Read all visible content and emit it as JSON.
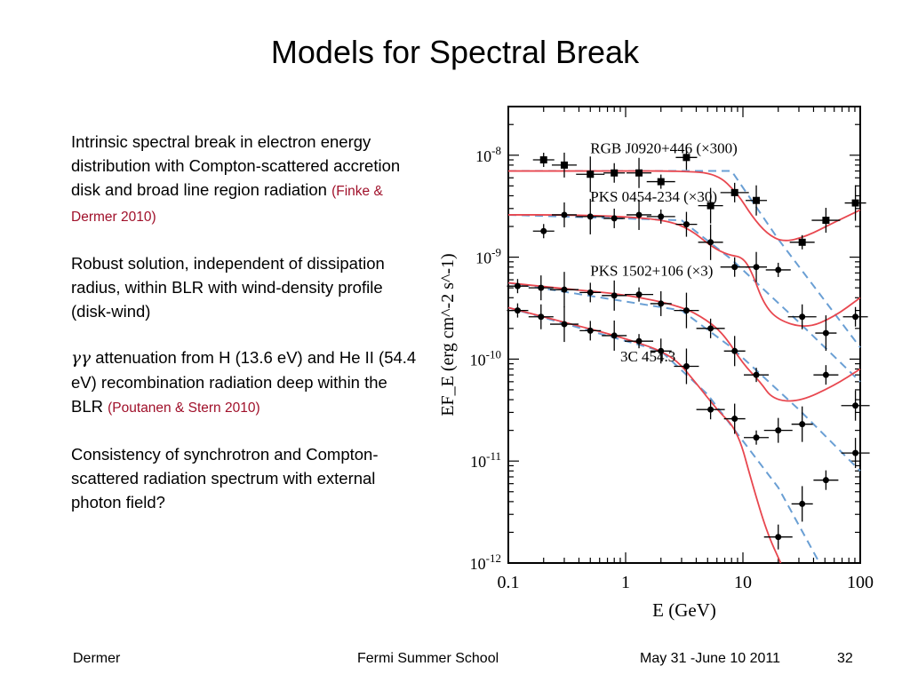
{
  "slide": {
    "title": "Models for Spectral Break",
    "bullets": [
      {
        "text": "Intrinsic spectral break in electron energy distribution with Compton-scattered accretion disk and broad line region radiation ",
        "cite": "(Finke & Dermer 2010)"
      },
      {
        "text": "Robust solution, independent of dissipation radius, within BLR with wind-density profile (disk-wind)",
        "cite": ""
      },
      {
        "prefix": "γγ",
        "text": " attenuation from H (13.6 eV) and He II (54.4 eV) recombination radiation deep within the BLR ",
        "cite": "(Poutanen & Stern 2010)"
      },
      {
        "text": "Consistency of synchrotron and Compton-scattered radiation spectrum with external photon field?",
        "cite": ""
      }
    ],
    "footer": {
      "author": "Dermer",
      "event": "Fermi Summer School",
      "date": "May 31 -June 10 2011",
      "page": "32"
    }
  },
  "colors": {
    "model_curve": "#e8474f",
    "powerlaw_dash": "#6a9fd4",
    "citation": "#a0102a"
  },
  "chart_data": {
    "type": "scatter",
    "x_scale": "log",
    "y_scale": "log",
    "xlabel": "E (GeV)",
    "ylabel": "EF_E (erg cm^-2 s^-1)",
    "xlim": [
      0.1,
      100
    ],
    "ylim": [
      1e-12,
      3e-08
    ],
    "x_ticks": [
      "0.1",
      "1",
      "10",
      "100"
    ],
    "y_ticks": [
      "10-12",
      "10-11",
      "10-10",
      "10-9",
      "10-8"
    ],
    "series": [
      {
        "name": "RGB J0920+446 (×300)",
        "marker": "square",
        "points": [
          {
            "x": 0.2,
            "y": 9e-09
          },
          {
            "x": 0.3,
            "y": 8e-09
          },
          {
            "x": 0.5,
            "y": 6.5e-09
          },
          {
            "x": 0.8,
            "y": 6.7e-09
          },
          {
            "x": 1.3,
            "y": 6.7e-09
          },
          {
            "x": 2.0,
            "y": 5.5e-09
          },
          {
            "x": 3.3,
            "y": 9.5e-09
          },
          {
            "x": 5.3,
            "y": 3.2e-09
          },
          {
            "x": 8.5,
            "y": 4.3e-09
          },
          {
            "x": 13,
            "y": 3.6e-09
          },
          {
            "x": 32,
            "y": 1.4e-09
          },
          {
            "x": 51,
            "y": 2.3e-09
          },
          {
            "x": 91,
            "y": 3.4e-09
          }
        ]
      },
      {
        "name": "PKS 0454-234 (×30)",
        "marker": "circle",
        "points": [
          {
            "x": 0.2,
            "y": 1.8e-09
          },
          {
            "x": 0.3,
            "y": 2.6e-09
          },
          {
            "x": 0.5,
            "y": 2.5e-09
          },
          {
            "x": 0.8,
            "y": 2.4e-09
          },
          {
            "x": 1.3,
            "y": 2.6e-09
          },
          {
            "x": 2.0,
            "y": 2.5e-09
          },
          {
            "x": 3.3,
            "y": 2.1e-09
          },
          {
            "x": 5.3,
            "y": 1.4e-09
          },
          {
            "x": 8.5,
            "y": 8e-10
          },
          {
            "x": 13,
            "y": 8e-10
          },
          {
            "x": 20,
            "y": 7.5e-10
          },
          {
            "x": 32,
            "y": 2.6e-10
          },
          {
            "x": 51,
            "y": 1.8e-10
          },
          {
            "x": 91,
            "y": 2.6e-10
          }
        ]
      },
      {
        "name": "PKS 1502+106 (×3)",
        "marker": "circle",
        "points": [
          {
            "x": 0.12,
            "y": 5.2e-10
          },
          {
            "x": 0.19,
            "y": 5e-10
          },
          {
            "x": 0.3,
            "y": 4.8e-10
          },
          {
            "x": 0.5,
            "y": 4.5e-10
          },
          {
            "x": 0.8,
            "y": 4.2e-10
          },
          {
            "x": 1.3,
            "y": 4.3e-10
          },
          {
            "x": 2.0,
            "y": 3.5e-10
          },
          {
            "x": 3.3,
            "y": 3e-10
          },
          {
            "x": 5.3,
            "y": 2e-10
          },
          {
            "x": 8.5,
            "y": 1.2e-10
          },
          {
            "x": 13,
            "y": 7e-11
          },
          {
            "x": 20,
            "y": 2e-11
          },
          {
            "x": 32,
            "y": 2.3e-11
          },
          {
            "x": 51,
            "y": 7e-11
          },
          {
            "x": 91,
            "y": 3.5e-11
          }
        ]
      },
      {
        "name": "3C 454.3",
        "marker": "circle",
        "points": [
          {
            "x": 0.12,
            "y": 3e-10
          },
          {
            "x": 0.19,
            "y": 2.6e-10
          },
          {
            "x": 0.3,
            "y": 2.2e-10
          },
          {
            "x": 0.5,
            "y": 1.9e-10
          },
          {
            "x": 0.8,
            "y": 1.7e-10
          },
          {
            "x": 1.3,
            "y": 1.5e-10
          },
          {
            "x": 2.0,
            "y": 1.2e-10
          },
          {
            "x": 3.3,
            "y": 8.5e-11
          },
          {
            "x": 5.3,
            "y": 3.2e-11
          },
          {
            "x": 8.5,
            "y": 2.6e-11
          },
          {
            "x": 13,
            "y": 1.7e-11
          },
          {
            "x": 20,
            "y": 1.8e-12
          },
          {
            "x": 32,
            "y": 3.8e-12
          },
          {
            "x": 51,
            "y": 6.5e-12
          },
          {
            "x": 91,
            "y": 1.2e-11
          }
        ]
      }
    ],
    "models": [
      {
        "series": "RGB J0920+446 (×300)",
        "points": [
          [
            0.1,
            7e-09
          ],
          [
            0.3,
            7e-09
          ],
          [
            1,
            7e-09
          ],
          [
            3,
            7e-09
          ],
          [
            6,
            6.6e-09
          ],
          [
            9,
            4.2e-09
          ],
          [
            12,
            2.5e-09
          ],
          [
            16,
            1.7e-09
          ],
          [
            22,
            1.4e-09
          ],
          [
            35,
            1.6e-09
          ],
          [
            60,
            2.2e-09
          ],
          [
            100,
            2.9e-09
          ]
        ]
      },
      {
        "series": "PKS 0454-234 (×30)",
        "points": [
          [
            0.1,
            2.6e-09
          ],
          [
            0.3,
            2.6e-09
          ],
          [
            1,
            2.5e-09
          ],
          [
            2.2,
            2.3e-09
          ],
          [
            3.5,
            1.9e-09
          ],
          [
            5.5,
            1.25e-09
          ],
          [
            7.5,
            1.05e-09
          ],
          [
            10,
            1e-09
          ],
          [
            12,
            7e-10
          ],
          [
            15,
            3.5e-10
          ],
          [
            20,
            2.4e-10
          ],
          [
            35,
            2e-10
          ],
          [
            60,
            2.6e-10
          ],
          [
            100,
            4e-10
          ]
        ]
      },
      {
        "series": "PKS 1502+106 (×3)",
        "points": [
          [
            0.1,
            5.6e-10
          ],
          [
            0.3,
            4.9e-10
          ],
          [
            1,
            4.3e-10
          ],
          [
            3,
            3.3e-10
          ],
          [
            5,
            2.4e-10
          ],
          [
            7,
            1.7e-10
          ],
          [
            10,
            9e-11
          ],
          [
            14,
            6e-11
          ],
          [
            18,
            4e-11
          ],
          [
            30,
            3.8e-11
          ],
          [
            60,
            5.5e-11
          ],
          [
            100,
            8e-11
          ]
        ]
      },
      {
        "series": "3C 454.3",
        "points": [
          [
            0.1,
            3.2e-10
          ],
          [
            0.3,
            2.3e-10
          ],
          [
            1,
            1.6e-10
          ],
          [
            2.5,
            1.1e-10
          ],
          [
            4,
            5.8e-11
          ],
          [
            6,
            3.2e-11
          ],
          [
            9,
            2e-11
          ],
          [
            12,
            6e-12
          ],
          [
            16,
            2e-12
          ],
          [
            21,
            1e-12
          ]
        ]
      }
    ],
    "power_laws": [
      {
        "series": "RGB J0920+446 (×300)",
        "points": [
          [
            0.1,
            7e-09
          ],
          [
            8,
            7e-09
          ],
          [
            20,
            1.5e-09
          ],
          [
            100,
            1.3e-10
          ]
        ]
      },
      {
        "series": "PKS 0454-234 (×30)",
        "points": [
          [
            0.1,
            2.6e-09
          ],
          [
            3,
            2.3e-09
          ],
          [
            8,
            9.5e-10
          ],
          [
            30,
            2.3e-10
          ],
          [
            100,
            6e-11
          ]
        ]
      },
      {
        "series": "PKS 1502+106 (×3)",
        "points": [
          [
            0.1,
            5.6e-10
          ],
          [
            3,
            3e-10
          ],
          [
            8,
            1.3e-10
          ],
          [
            30,
            3.2e-11
          ],
          [
            100,
            8e-12
          ]
        ]
      },
      {
        "series": "3C 454.3",
        "points": [
          [
            0.1,
            3.2e-10
          ],
          [
            2,
            1.2e-10
          ],
          [
            5,
            4.5e-11
          ],
          [
            20,
            5.5e-12
          ],
          [
            45,
            1e-12
          ]
        ]
      }
    ]
  }
}
